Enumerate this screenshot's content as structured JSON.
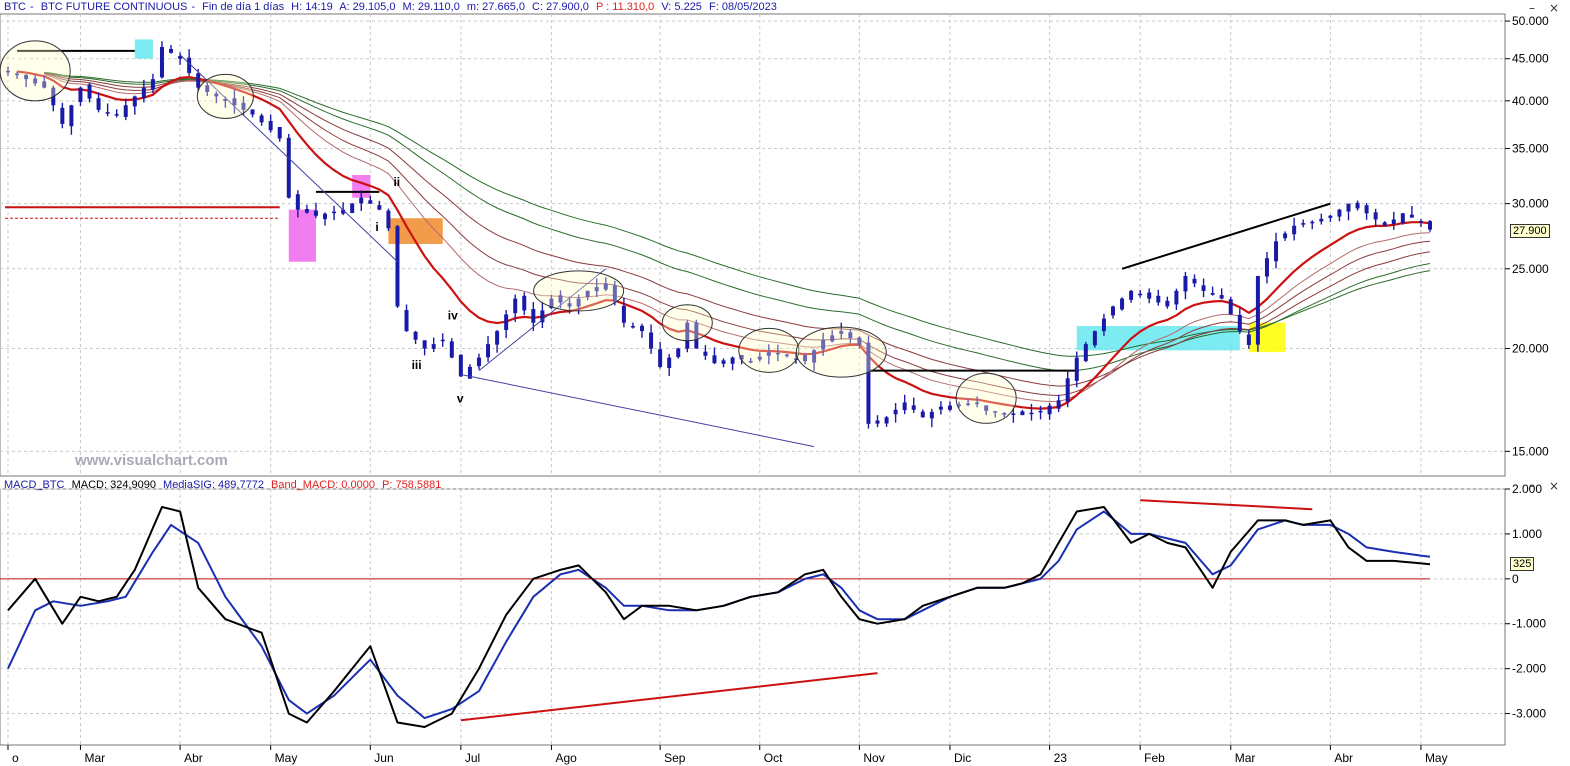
{
  "price_header": {
    "symbol": "BTC",
    "name": "BTC FUTURE CONTINUOUS",
    "period": "Fin de día 1 días",
    "high": "H: 14:19",
    "open": "A: 29.105,0",
    "max": "M: 29.110,0",
    "min": "m: 27.665,0",
    "close": "C: 27.900,0",
    "p_value": "P : 11.310,0",
    "volume": "V: 5.225",
    "date": "F: 08/05/2023"
  },
  "macd_header": {
    "name": "MACD_BTC",
    "macd": "MACD: 324,9090",
    "signal": "MediaSIG: 489,7772",
    "band": "Band_MACD: 0,0000",
    "p_value": "P: 758,5881"
  },
  "watermark": "www.visualchart.com",
  "window_controls": [
    "–",
    "×"
  ],
  "last_price_tag": "27.900",
  "last_macd_tag": "325",
  "colors": {
    "candle": "#1a1aa8",
    "ema_red": "#cc1111",
    "signal_blue": "#1a2fb0",
    "macd_black": "#000000",
    "grid": "#c9c9c9",
    "cyan_box": "#66e8f0",
    "magenta_box": "#ee66ee",
    "orange_box": "#f08a2a",
    "yellow_box": "#ffff00",
    "green_band": "#2b6b2b",
    "brown_band": "#8b3a3a"
  },
  "annotations": [
    {
      "label": "ii"
    },
    {
      "label": "i"
    },
    {
      "label": "iv"
    },
    {
      "label": "iii"
    },
    {
      "label": "v"
    }
  ],
  "chart_data": [
    {
      "type": "candlestick",
      "scale": "log",
      "ylim": [
        14000,
        51000
      ],
      "y_ticks": [
        {
          "value": 50000,
          "label": "50.000"
        },
        {
          "value": 45000,
          "label": "45.000"
        },
        {
          "value": 40000,
          "label": "40.000"
        },
        {
          "value": 35000,
          "label": "35.000"
        },
        {
          "value": 30000,
          "label": "30.000"
        },
        {
          "value": 25000,
          "label": "25.000"
        },
        {
          "value": 20000,
          "label": "20.000"
        },
        {
          "value": 15000,
          "label": "15.000"
        }
      ],
      "months": [
        {
          "label": "o",
          "i": 0
        },
        {
          "label": "Mar",
          "i": 8
        },
        {
          "label": "Abr",
          "i": 19
        },
        {
          "label": "May",
          "i": 29
        },
        {
          "label": "Jun",
          "i": 40
        },
        {
          "label": "Jul",
          "i": 50
        },
        {
          "label": "Ago",
          "i": 60
        },
        {
          "label": "Sep",
          "i": 72
        },
        {
          "label": "Oct",
          "i": 83
        },
        {
          "label": "Nov",
          "i": 94
        },
        {
          "label": "Dic",
          "i": 104
        },
        {
          "label": "23",
          "i": 115
        },
        {
          "label": "Feb",
          "i": 125
        },
        {
          "label": "Mar",
          "i": 135
        },
        {
          "label": "Abr",
          "i": 146
        },
        {
          "label": "May",
          "i": 156
        }
      ],
      "close_anchors": [
        [
          0,
          43500
        ],
        [
          4,
          41500
        ],
        [
          6,
          37500
        ],
        [
          8,
          41500
        ],
        [
          10,
          39000
        ],
        [
          12,
          38500
        ],
        [
          14,
          40500
        ],
        [
          16,
          42500
        ],
        [
          17,
          46500
        ],
        [
          19,
          45000
        ],
        [
          21,
          41500
        ],
        [
          24,
          40000
        ],
        [
          27,
          38500
        ],
        [
          30,
          36000
        ],
        [
          31,
          30500
        ],
        [
          32,
          29500
        ],
        [
          34,
          29000
        ],
        [
          37,
          29500
        ],
        [
          39,
          30500
        ],
        [
          41,
          29500
        ],
        [
          42,
          28000
        ],
        [
          43,
          22500
        ],
        [
          44,
          21000
        ],
        [
          46,
          20000
        ],
        [
          48,
          20500
        ],
        [
          49,
          19500
        ],
        [
          50,
          18500
        ],
        [
          52,
          19500
        ],
        [
          54,
          21000
        ],
        [
          56,
          23000
        ],
        [
          58,
          21500
        ],
        [
          60,
          23000
        ],
        [
          62,
          22500
        ],
        [
          64,
          23500
        ],
        [
          66,
          24000
        ],
        [
          68,
          21500
        ],
        [
          70,
          21000
        ],
        [
          72,
          19000
        ],
        [
          74,
          20000
        ],
        [
          75,
          21500
        ],
        [
          76,
          20000
        ],
        [
          78,
          19200
        ],
        [
          80,
          19500
        ],
        [
          82,
          19300
        ],
        [
          84,
          19800
        ],
        [
          86,
          19600
        ],
        [
          88,
          19300
        ],
        [
          90,
          20500
        ],
        [
          92,
          21000
        ],
        [
          94,
          20200
        ],
        [
          95,
          16200
        ],
        [
          97,
          16500
        ],
        [
          99,
          17200
        ],
        [
          101,
          16500
        ],
        [
          103,
          17000
        ],
        [
          105,
          17100
        ],
        [
          107,
          17200
        ],
        [
          108,
          16800
        ],
        [
          110,
          16700
        ],
        [
          112,
          16600
        ],
        [
          114,
          16800
        ],
        [
          116,
          17300
        ],
        [
          118,
          19500
        ],
        [
          120,
          21000
        ],
        [
          122,
          22500
        ],
        [
          124,
          23500
        ],
        [
          126,
          23000
        ],
        [
          128,
          22500
        ],
        [
          130,
          24500
        ],
        [
          132,
          23500
        ],
        [
          134,
          23000
        ],
        [
          136,
          21000
        ],
        [
          137,
          20200
        ],
        [
          138,
          24500
        ],
        [
          140,
          27000
        ],
        [
          142,
          28200
        ],
        [
          144,
          28500
        ],
        [
          146,
          29000
        ],
        [
          148,
          30000
        ],
        [
          150,
          29200
        ],
        [
          152,
          28200
        ],
        [
          154,
          29200
        ],
        [
          156,
          28500
        ],
        [
          157,
          27900
        ]
      ],
      "horizontal_levels": [
        {
          "value": 29700,
          "style": "solid",
          "color": "#cc1111"
        },
        {
          "value": 28800,
          "style": "dashed",
          "color": "#cc1111"
        }
      ]
    },
    {
      "type": "line",
      "name": "MACD_BTC",
      "ylim": [
        -3700,
        2000
      ],
      "y_ticks": [
        {
          "value": 2000,
          "label": "2.000"
        },
        {
          "value": 1000,
          "label": "1.000"
        },
        {
          "value": 0,
          "label": "0"
        },
        {
          "value": -1000,
          "label": "-1.000"
        },
        {
          "value": -2000,
          "label": "-2.000"
        },
        {
          "value": -3000,
          "label": "-3.000"
        }
      ],
      "macd_anchors": [
        [
          0,
          -700
        ],
        [
          3,
          0
        ],
        [
          6,
          -1000
        ],
        [
          8,
          -400
        ],
        [
          10,
          -500
        ],
        [
          12,
          -400
        ],
        [
          14,
          200
        ],
        [
          17,
          1600
        ],
        [
          19,
          1500
        ],
        [
          21,
          -200
        ],
        [
          24,
          -900
        ],
        [
          28,
          -1200
        ],
        [
          31,
          -3000
        ],
        [
          33,
          -3200
        ],
        [
          36,
          -2500
        ],
        [
          40,
          -1500
        ],
        [
          43,
          -3200
        ],
        [
          46,
          -3300
        ],
        [
          49,
          -3000
        ],
        [
          52,
          -2000
        ],
        [
          55,
          -800
        ],
        [
          58,
          0
        ],
        [
          61,
          200
        ],
        [
          63,
          300
        ],
        [
          66,
          -300
        ],
        [
          68,
          -900
        ],
        [
          70,
          -600
        ],
        [
          73,
          -600
        ],
        [
          76,
          -700
        ],
        [
          79,
          -600
        ],
        [
          82,
          -400
        ],
        [
          85,
          -300
        ],
        [
          88,
          100
        ],
        [
          90,
          200
        ],
        [
          92,
          -400
        ],
        [
          94,
          -900
        ],
        [
          96,
          -1000
        ],
        [
          99,
          -900
        ],
        [
          101,
          -600
        ],
        [
          104,
          -400
        ],
        [
          107,
          -200
        ],
        [
          110,
          -200
        ],
        [
          112,
          -100
        ],
        [
          114,
          100
        ],
        [
          116,
          800
        ],
        [
          118,
          1500
        ],
        [
          121,
          1600
        ],
        [
          124,
          800
        ],
        [
          126,
          1000
        ],
        [
          128,
          800
        ],
        [
          130,
          700
        ],
        [
          133,
          -200
        ],
        [
          135,
          600
        ],
        [
          138,
          1300
        ],
        [
          141,
          1300
        ],
        [
          143,
          1200
        ],
        [
          146,
          1300
        ],
        [
          148,
          700
        ],
        [
          150,
          400
        ],
        [
          153,
          400
        ],
        [
          157,
          324.9
        ]
      ],
      "signal_anchors": [
        [
          0,
          -2000
        ],
        [
          3,
          -700
        ],
        [
          5,
          -500
        ],
        [
          8,
          -600
        ],
        [
          11,
          -500
        ],
        [
          13,
          -400
        ],
        [
          16,
          600
        ],
        [
          18,
          1200
        ],
        [
          21,
          800
        ],
        [
          24,
          -400
        ],
        [
          28,
          -1500
        ],
        [
          31,
          -2700
        ],
        [
          33,
          -3000
        ],
        [
          36,
          -2600
        ],
        [
          40,
          -1800
        ],
        [
          43,
          -2600
        ],
        [
          46,
          -3100
        ],
        [
          49,
          -2900
        ],
        [
          52,
          -2500
        ],
        [
          55,
          -1400
        ],
        [
          58,
          -400
        ],
        [
          61,
          100
        ],
        [
          63,
          200
        ],
        [
          66,
          -200
        ],
        [
          68,
          -600
        ],
        [
          70,
          -600
        ],
        [
          73,
          -700
        ],
        [
          76,
          -700
        ],
        [
          79,
          -600
        ],
        [
          82,
          -400
        ],
        [
          85,
          -300
        ],
        [
          88,
          0
        ],
        [
          90,
          100
        ],
        [
          92,
          -200
        ],
        [
          94,
          -700
        ],
        [
          96,
          -900
        ],
        [
          99,
          -900
        ],
        [
          101,
          -700
        ],
        [
          104,
          -400
        ],
        [
          107,
          -200
        ],
        [
          110,
          -200
        ],
        [
          112,
          -100
        ],
        [
          114,
          0
        ],
        [
          116,
          400
        ],
        [
          118,
          1100
        ],
        [
          121,
          1500
        ],
        [
          124,
          1000
        ],
        [
          126,
          1000
        ],
        [
          128,
          900
        ],
        [
          130,
          800
        ],
        [
          133,
          100
        ],
        [
          135,
          300
        ],
        [
          138,
          1100
        ],
        [
          141,
          1300
        ],
        [
          143,
          1200
        ],
        [
          146,
          1200
        ],
        [
          148,
          1000
        ],
        [
          150,
          700
        ],
        [
          153,
          600
        ],
        [
          157,
          489.8
        ]
      ]
    }
  ]
}
